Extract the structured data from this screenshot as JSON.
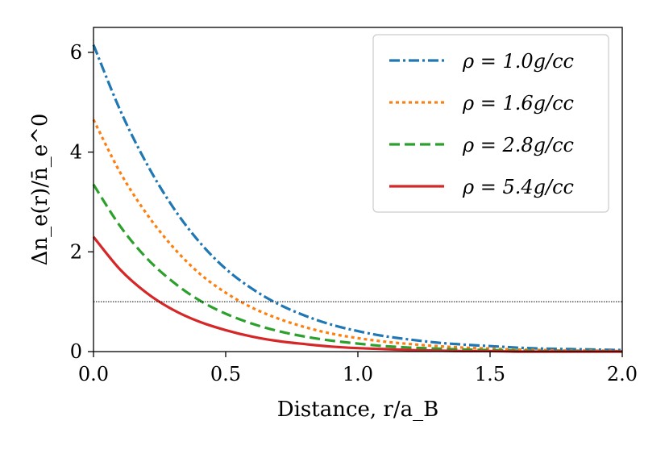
{
  "chart_data": {
    "type": "line",
    "title": "",
    "xlabel": "Distance, r/a_B",
    "ylabel": "Δn_e(r)/n̄_e^0",
    "xlim": [
      0.0,
      2.0
    ],
    "ylim": [
      0,
      6.5
    ],
    "x_ticks": [
      0.0,
      0.5,
      1.0,
      1.5,
      2.0
    ],
    "x_tick_labels": [
      "0.0",
      "0.5",
      "1.0",
      "1.5",
      "2.0"
    ],
    "y_ticks": [
      0,
      2,
      4,
      6
    ],
    "y_tick_labels": [
      "0",
      "2",
      "4",
      "6"
    ],
    "grid": false,
    "legend_position": "top-right",
    "reference_line": {
      "y": 1.0,
      "style": "dotted",
      "color": "#000000"
    },
    "x": [
      0.0,
      0.1,
      0.2,
      0.3,
      0.4,
      0.5,
      0.6,
      0.7,
      0.8,
      0.9,
      1.0,
      1.1,
      1.2,
      1.3,
      1.4,
      1.5,
      1.6,
      1.7,
      1.8,
      1.9,
      2.0
    ],
    "series": [
      {
        "name": "ρ = 1.0g/cc",
        "style": "dashdot",
        "color": "#1f77b4",
        "values": [
          6.15,
          4.85,
          3.78,
          2.9,
          2.2,
          1.66,
          1.26,
          0.95,
          0.72,
          0.54,
          0.41,
          0.31,
          0.24,
          0.18,
          0.14,
          0.11,
          0.08,
          0.06,
          0.05,
          0.04,
          0.03
        ]
      },
      {
        "name": "ρ = 1.6g/cc",
        "style": "dotted",
        "color": "#ff7f0e",
        "values": [
          4.65,
          3.6,
          2.77,
          2.1,
          1.57,
          1.18,
          0.88,
          0.66,
          0.49,
          0.36,
          0.27,
          0.2,
          0.15,
          0.11,
          0.08,
          0.06,
          0.04,
          0.03,
          0.02,
          0.02,
          0.01
        ]
      },
      {
        "name": "ρ = 2.8g/cc",
        "style": "dashed",
        "color": "#2ca02c",
        "values": [
          3.35,
          2.52,
          1.88,
          1.4,
          1.03,
          0.76,
          0.56,
          0.41,
          0.3,
          0.22,
          0.16,
          0.11,
          0.08,
          0.06,
          0.04,
          0.03,
          0.02,
          0.01,
          0.01,
          0.01,
          0.0
        ]
      },
      {
        "name": "ρ = 5.4g/cc",
        "style": "solid",
        "color": "#d62728",
        "values": [
          2.3,
          1.65,
          1.18,
          0.84,
          0.6,
          0.43,
          0.3,
          0.21,
          0.15,
          0.1,
          0.07,
          0.05,
          0.03,
          0.02,
          0.01,
          0.01,
          0.0,
          0.0,
          0.0,
          0.0,
          0.0
        ]
      }
    ]
  }
}
